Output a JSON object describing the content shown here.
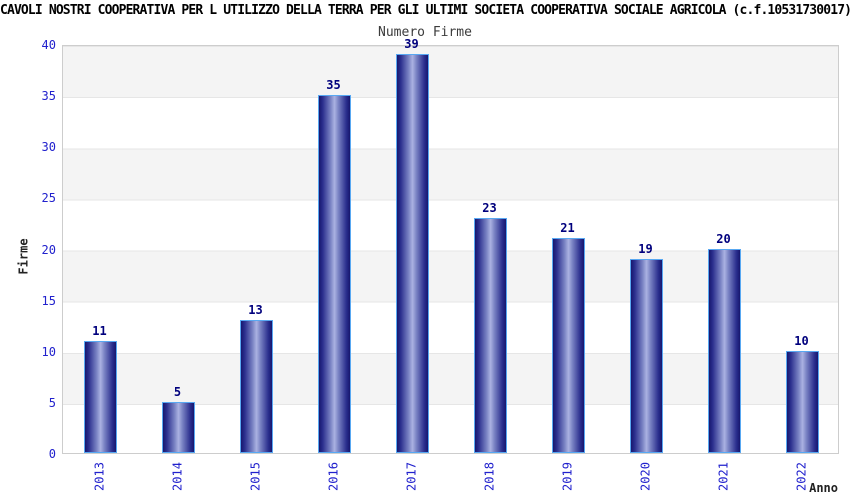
{
  "title": "CAVOLI NOSTRI COOPERATIVA PER L UTILIZZO DELLA TERRA PER GLI ULTIMI SOCIETA COOPERATIVA SOCIALE AGRICOLA (c.f.10531730017)",
  "chart_data": {
    "type": "bar",
    "title": "Numero Firme",
    "xlabel": "Anno",
    "ylabel": "Firme",
    "categories": [
      "2013",
      "2014",
      "2015",
      "2016",
      "2017",
      "2018",
      "2019",
      "2020",
      "2021",
      "2022"
    ],
    "values": [
      11,
      5,
      13,
      35,
      39,
      23,
      21,
      19,
      20,
      10
    ],
    "ylim": [
      0,
      40
    ],
    "yticks": [
      0,
      5,
      10,
      15,
      20,
      25,
      30,
      35,
      40
    ],
    "bar_value_labels_shown": true,
    "legend": "none",
    "grid": "alternating horizontal gray/white bands every 5 units",
    "tick_label_orientation_x": "vertical",
    "colors": {
      "bar_dark": "#17176e",
      "bar_light": "#abb2e2",
      "bar_border": "#58a8f2",
      "axis_tick_label": "#2121cd",
      "bar_value_label": "#00007d",
      "band_gray": "#f4f4f4",
      "band_white": "#ffffff",
      "title_text": "#000000",
      "subtitle_text": "#3c3c3c",
      "axis_title_text": "#222222"
    }
  }
}
